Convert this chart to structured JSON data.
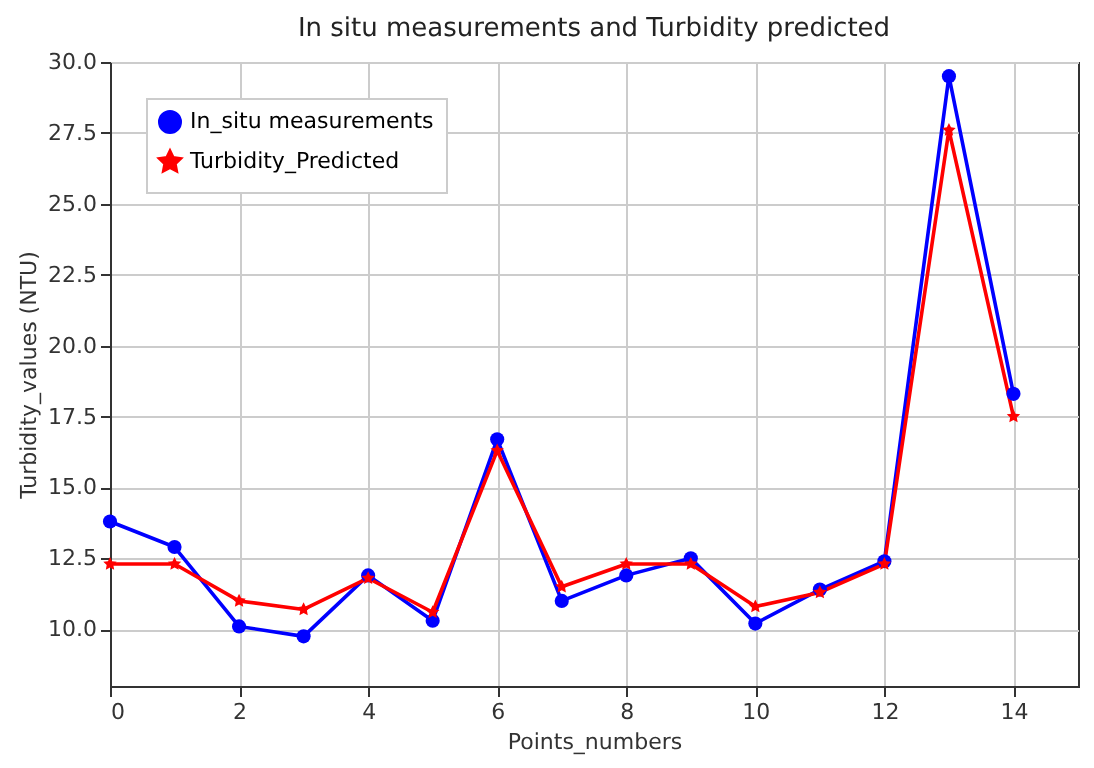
{
  "chart_data": {
    "type": "line",
    "title": "In situ measurements and Turbidity predicted",
    "xlabel": "Points_numbers",
    "ylabel": "Turbidity_values (NTU)",
    "x": [
      0,
      1,
      2,
      3,
      4,
      5,
      6,
      7,
      8,
      9,
      10,
      11,
      12,
      13,
      14
    ],
    "series": [
      {
        "name": "In_situ measurements",
        "color": "#0000ff",
        "marker": "circle",
        "values": [
          13.8,
          12.9,
          10.1,
          9.75,
          11.9,
          10.3,
          16.7,
          11.0,
          11.9,
          12.5,
          10.2,
          11.4,
          12.4,
          29.5,
          18.3
        ]
      },
      {
        "name": "Turbidity_Predicted",
        "color": "#ff0000",
        "marker": "star",
        "values": [
          12.3,
          12.3,
          11.0,
          10.7,
          11.8,
          10.6,
          16.3,
          11.5,
          12.3,
          12.3,
          10.8,
          11.3,
          12.3,
          27.6,
          17.5
        ]
      }
    ],
    "xlim": [
      0,
      15
    ],
    "xticks": [
      0,
      2,
      4,
      6,
      8,
      10,
      12,
      14
    ],
    "ylim": [
      8,
      30
    ],
    "yticks": [
      {
        "value": 10,
        "label": "10.0"
      },
      12.5,
      {
        "value": 15,
        "label": "15.0"
      },
      17.5,
      {
        "value": 20,
        "label": "20.0"
      },
      22.5,
      {
        "value": 25,
        "label": "25.0"
      },
      27.5,
      {
        "value": 30,
        "label": "30.0"
      }
    ],
    "grid": true,
    "legend": "top left",
    "line_style": "solid"
  }
}
